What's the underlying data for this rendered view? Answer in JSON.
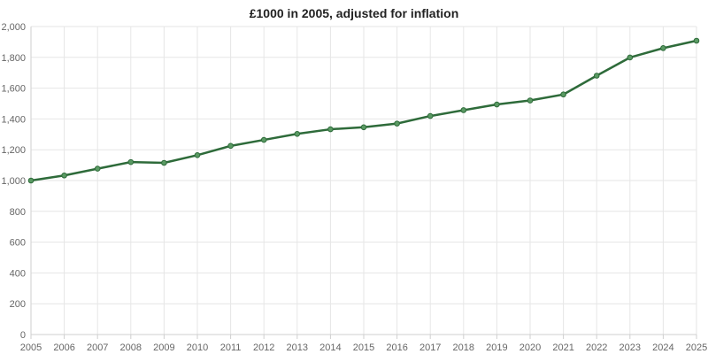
{
  "chart_data": {
    "type": "line",
    "title": "£1000 in 2005, adjusted for inflation",
    "xlabel": "",
    "ylabel": "",
    "x": [
      "2005",
      "2006",
      "2007",
      "2008",
      "2009",
      "2010",
      "2011",
      "2012",
      "2013",
      "2014",
      "2015",
      "2016",
      "2017",
      "2018",
      "2019",
      "2020",
      "2021",
      "2022",
      "2023",
      "2024",
      "2025"
    ],
    "series": [
      {
        "name": "",
        "values": [
          1000,
          1033,
          1077,
          1120,
          1115,
          1165,
          1225,
          1264,
          1303,
          1333,
          1346,
          1370,
          1419,
          1457,
          1494,
          1520,
          1559,
          1681,
          1799,
          1860,
          1908
        ]
      }
    ],
    "ylim": [
      0,
      2000
    ],
    "y_ticks": [
      0,
      200,
      400,
      600,
      800,
      1000,
      1200,
      1400,
      1600,
      1800,
      2000
    ],
    "y_tick_labels": [
      "0",
      "200",
      "400",
      "600",
      "800",
      "1,000",
      "1,200",
      "1,400",
      "1,600",
      "1,800",
      "2,000"
    ],
    "grid": true,
    "legend": "none",
    "colors": {
      "line": "#2e6b3a",
      "marker_fill": "#5a9a63",
      "grid": "#e6e6e6",
      "text": "#666666",
      "title": "#222222"
    }
  }
}
